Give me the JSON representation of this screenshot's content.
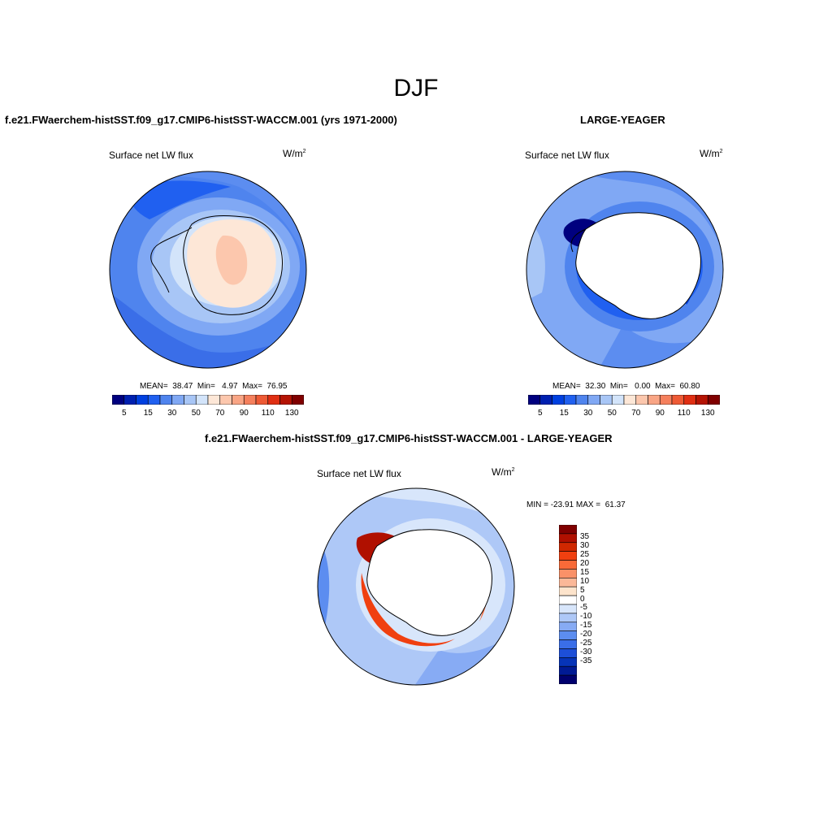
{
  "season": "DJF",
  "panels": {
    "model": {
      "title": "f.e21.FWaerchem-histSST.f09_g17.CMIP6-histSST-WACCM.001 (yrs 1971-2000)",
      "variable": "Surface net LW flux",
      "units": "W/m",
      "units_sup": "2",
      "stats": "MEAN=  38.47  Min=   4.97  Max=  76.95"
    },
    "obs": {
      "title": "LARGE-YEAGER",
      "variable": "Surface net LW flux",
      "units": "W/m",
      "units_sup": "2",
      "stats": "MEAN=  32.30  Min=   0.00  Max=  60.80"
    },
    "diff": {
      "title": "f.e21.FWaerchem-histSST.f09_g17.CMIP6-histSST-WACCM.001 - LARGE-YEAGER",
      "variable": "Surface net LW flux",
      "units": "W/m",
      "units_sup": "2",
      "stats": "MIN = -23.91 MAX =  61.37"
    }
  },
  "colorbar_abs": {
    "colors": [
      "#00007f",
      "#0020b0",
      "#0040e0",
      "#2060f0",
      "#4f84ee",
      "#80a8f4",
      "#a8c6f6",
      "#d3e4fa",
      "#fde7d7",
      "#fcc7ad",
      "#f9a585",
      "#f5805d",
      "#ee5a35",
      "#e02f13",
      "#b51404",
      "#800000"
    ],
    "tick_labels": [
      "5",
      "15",
      "30",
      "50",
      "70",
      "90",
      "110",
      "130"
    ]
  },
  "colorbar_diff": {
    "colors": [
      "#800000",
      "#b01000",
      "#d02800",
      "#f04010",
      "#f86a38",
      "#fa9168",
      "#fbb898",
      "#fde4cc",
      "#ffffff",
      "#d8e6fb",
      "#aec8f7",
      "#87abf4",
      "#5c8df0",
      "#3a6ee8",
      "#1d4fd8",
      "#0634b8",
      "#001a94",
      "#00006e"
    ],
    "tick_labels": [
      "35",
      "30",
      "25",
      "20",
      "15",
      "10",
      "5",
      "0",
      "-5",
      "-10",
      "-15",
      "-20",
      "-25",
      "-30",
      "-35"
    ]
  }
}
